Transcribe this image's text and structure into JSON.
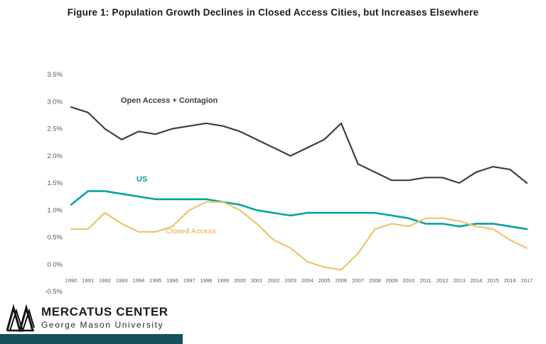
{
  "title": "Figure 1:  Population Growth Declines in Closed Access Cities, but Increases Elsewhere",
  "chart_data": {
    "type": "line",
    "x": [
      1990,
      1991,
      1992,
      1993,
      1994,
      1995,
      1996,
      1997,
      1998,
      1999,
      2000,
      2001,
      2002,
      2003,
      2004,
      2005,
      2006,
      2007,
      2008,
      2009,
      2010,
      2011,
      2012,
      2013,
      2014,
      2015,
      2016,
      2017
    ],
    "series": [
      {
        "name": "Open Access + Contagion",
        "color": "#3f3f3f",
        "width": 2.2,
        "values": [
          2.9,
          2.8,
          2.5,
          2.3,
          2.45,
          2.4,
          2.5,
          2.55,
          2.6,
          2.55,
          2.45,
          2.3,
          2.15,
          2.0,
          2.15,
          2.3,
          2.6,
          1.85,
          1.7,
          1.55,
          1.55,
          1.6,
          1.6,
          1.5,
          1.7,
          1.8,
          1.75,
          1.5
        ]
      },
      {
        "name": "US",
        "color": "#00a39e",
        "width": 2.6,
        "values": [
          1.1,
          1.35,
          1.35,
          1.3,
          1.25,
          1.2,
          1.2,
          1.2,
          1.2,
          1.15,
          1.1,
          1.0,
          0.95,
          0.9,
          0.95,
          0.95,
          0.95,
          0.95,
          0.95,
          0.9,
          0.85,
          0.75,
          0.75,
          0.7,
          0.75,
          0.75,
          0.7,
          0.65
        ]
      },
      {
        "name": "Closed Access",
        "color": "#eec36d",
        "width": 2.2,
        "values": [
          0.65,
          0.65,
          0.95,
          0.75,
          0.6,
          0.6,
          0.7,
          1.0,
          1.15,
          1.15,
          1.0,
          0.75,
          0.45,
          0.3,
          0.05,
          -0.05,
          -0.1,
          0.2,
          0.65,
          0.75,
          0.7,
          0.85,
          0.85,
          0.8,
          0.7,
          0.65,
          0.45,
          0.3
        ]
      }
    ],
    "title": "Figure 1:  Population Growth Declines in Closed Access Cities, but Increases Elsewhere",
    "xlabel": "",
    "ylabel": "",
    "ylim": [
      -0.5,
      3.5
    ],
    "yticks": [
      "3.5%",
      "3.0%",
      "2.5%",
      "2.0%",
      "1.5%",
      "1.0%",
      "0.5%",
      "0.0%",
      "-0.5%"
    ],
    "grid": false,
    "legend": "inline-labels"
  },
  "annotations": {
    "open_access_label": "Open Access + Contagion",
    "us_label": "US",
    "closed_access_label": "Closed Access"
  },
  "footer": {
    "org_name": "MERCATUS CENTER",
    "org_sub": "George Mason University",
    "bar_color": "#16505c",
    "tick_color": "#595959"
  }
}
